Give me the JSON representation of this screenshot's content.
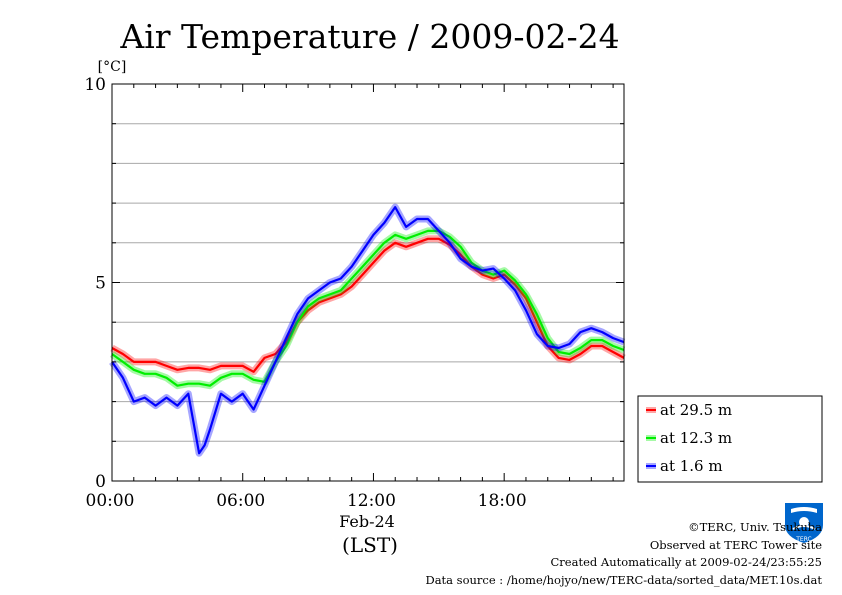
{
  "chart_data": {
    "type": "line",
    "title": "Air Temperature / 2009-02-24",
    "ylabel": "[°C]",
    "xlabel": "(LST)",
    "date_label": "Feb-24",
    "ylim": [
      0,
      10
    ],
    "xlim": [
      0,
      23.5
    ],
    "x_ticks": [
      {
        "value": 0,
        "label": "00:00"
      },
      {
        "value": 6,
        "label": "06:00"
      },
      {
        "value": 12,
        "label": "12:00"
      },
      {
        "value": 18,
        "label": "18:00"
      }
    ],
    "y_ticks": [
      {
        "value": 0,
        "label": "0"
      },
      {
        "value": 5,
        "label": "5"
      },
      {
        "value": 10,
        "label": "10"
      }
    ],
    "grid": true,
    "legend_position": "bottom-right",
    "series": [
      {
        "name": "at 29.5 m",
        "color": "#ff0000",
        "x": [
          0,
          0.5,
          1,
          1.5,
          2,
          2.5,
          3,
          3.5,
          4,
          4.5,
          5,
          5.5,
          6,
          6.5,
          7,
          7.5,
          8,
          8.5,
          9,
          9.5,
          10,
          10.5,
          11,
          11.5,
          12,
          12.5,
          13,
          13.5,
          14,
          14.5,
          15,
          15.5,
          16,
          16.5,
          17,
          17.5,
          18,
          18.5,
          19,
          19.5,
          20,
          20.5,
          21,
          21.5,
          22,
          22.5,
          23,
          23.5
        ],
        "values": [
          3.35,
          3.2,
          3.0,
          3.0,
          3.0,
          2.9,
          2.8,
          2.85,
          2.85,
          2.8,
          2.9,
          2.9,
          2.9,
          2.75,
          3.1,
          3.2,
          3.5,
          4.0,
          4.3,
          4.5,
          4.6,
          4.7,
          4.9,
          5.2,
          5.5,
          5.8,
          6.0,
          5.9,
          6.0,
          6.1,
          6.1,
          5.95,
          5.7,
          5.4,
          5.2,
          5.1,
          5.2,
          4.95,
          4.6,
          4.0,
          3.4,
          3.1,
          3.05,
          3.2,
          3.4,
          3.4,
          3.25,
          3.1
        ]
      },
      {
        "name": "at 12.3 m",
        "color": "#00ee00",
        "x": [
          0,
          0.5,
          1,
          1.5,
          2,
          2.5,
          3,
          3.5,
          4,
          4.5,
          5,
          5.5,
          6,
          6.5,
          7,
          7.5,
          8,
          8.5,
          9,
          9.5,
          10,
          10.5,
          11,
          11.5,
          12,
          12.5,
          13,
          13.5,
          14,
          14.5,
          15,
          15.5,
          16,
          16.5,
          17,
          17.5,
          18,
          18.5,
          19,
          19.5,
          20,
          20.5,
          21,
          21.5,
          22,
          22.5,
          23,
          23.5
        ],
        "values": [
          3.2,
          3.0,
          2.8,
          2.7,
          2.7,
          2.6,
          2.4,
          2.45,
          2.45,
          2.4,
          2.6,
          2.7,
          2.7,
          2.55,
          2.5,
          3.0,
          3.4,
          4.0,
          4.4,
          4.6,
          4.7,
          4.8,
          5.1,
          5.4,
          5.7,
          6.0,
          6.2,
          6.1,
          6.2,
          6.3,
          6.3,
          6.15,
          5.9,
          5.5,
          5.3,
          5.2,
          5.3,
          5.05,
          4.7,
          4.2,
          3.6,
          3.25,
          3.2,
          3.35,
          3.55,
          3.55,
          3.4,
          3.3
        ]
      },
      {
        "name": "at 1.6 m",
        "color": "#0000ff",
        "x": [
          0,
          0.5,
          1,
          1.5,
          2,
          2.5,
          3,
          3.5,
          4,
          4.25,
          4.5,
          5,
          5.5,
          6,
          6.5,
          7,
          7.5,
          8,
          8.5,
          9,
          9.5,
          10,
          10.5,
          11,
          11.5,
          12,
          12.5,
          13,
          13.5,
          14,
          14.5,
          15,
          15.5,
          16,
          16.5,
          17,
          17.5,
          18,
          18.5,
          19,
          19.5,
          20,
          20.5,
          21,
          21.5,
          22,
          22.5,
          23,
          23.5
        ],
        "values": [
          3.0,
          2.6,
          2.0,
          2.1,
          1.9,
          2.1,
          1.9,
          2.2,
          0.7,
          0.9,
          1.3,
          2.2,
          2.0,
          2.2,
          1.8,
          2.4,
          3.0,
          3.6,
          4.2,
          4.6,
          4.8,
          5.0,
          5.1,
          5.4,
          5.8,
          6.2,
          6.5,
          6.9,
          6.4,
          6.6,
          6.6,
          6.3,
          6.0,
          5.6,
          5.4,
          5.3,
          5.35,
          5.1,
          4.8,
          4.3,
          3.7,
          3.4,
          3.35,
          3.45,
          3.75,
          3.85,
          3.75,
          3.6,
          3.5
        ]
      }
    ]
  },
  "credits": {
    "copyright": "©TERC, Univ. Tsukuba",
    "observed": "Observed at TERC Tower site",
    "created": "Created Automatically at 2009-02-24/23:55:25",
    "source": "Data source : /home/hojyo/new/TERC-data/sorted_data/MET.10s.dat"
  },
  "logo": {
    "text": "TERC",
    "color": "#0066cc",
    "icon": "terc-logo-icon"
  }
}
